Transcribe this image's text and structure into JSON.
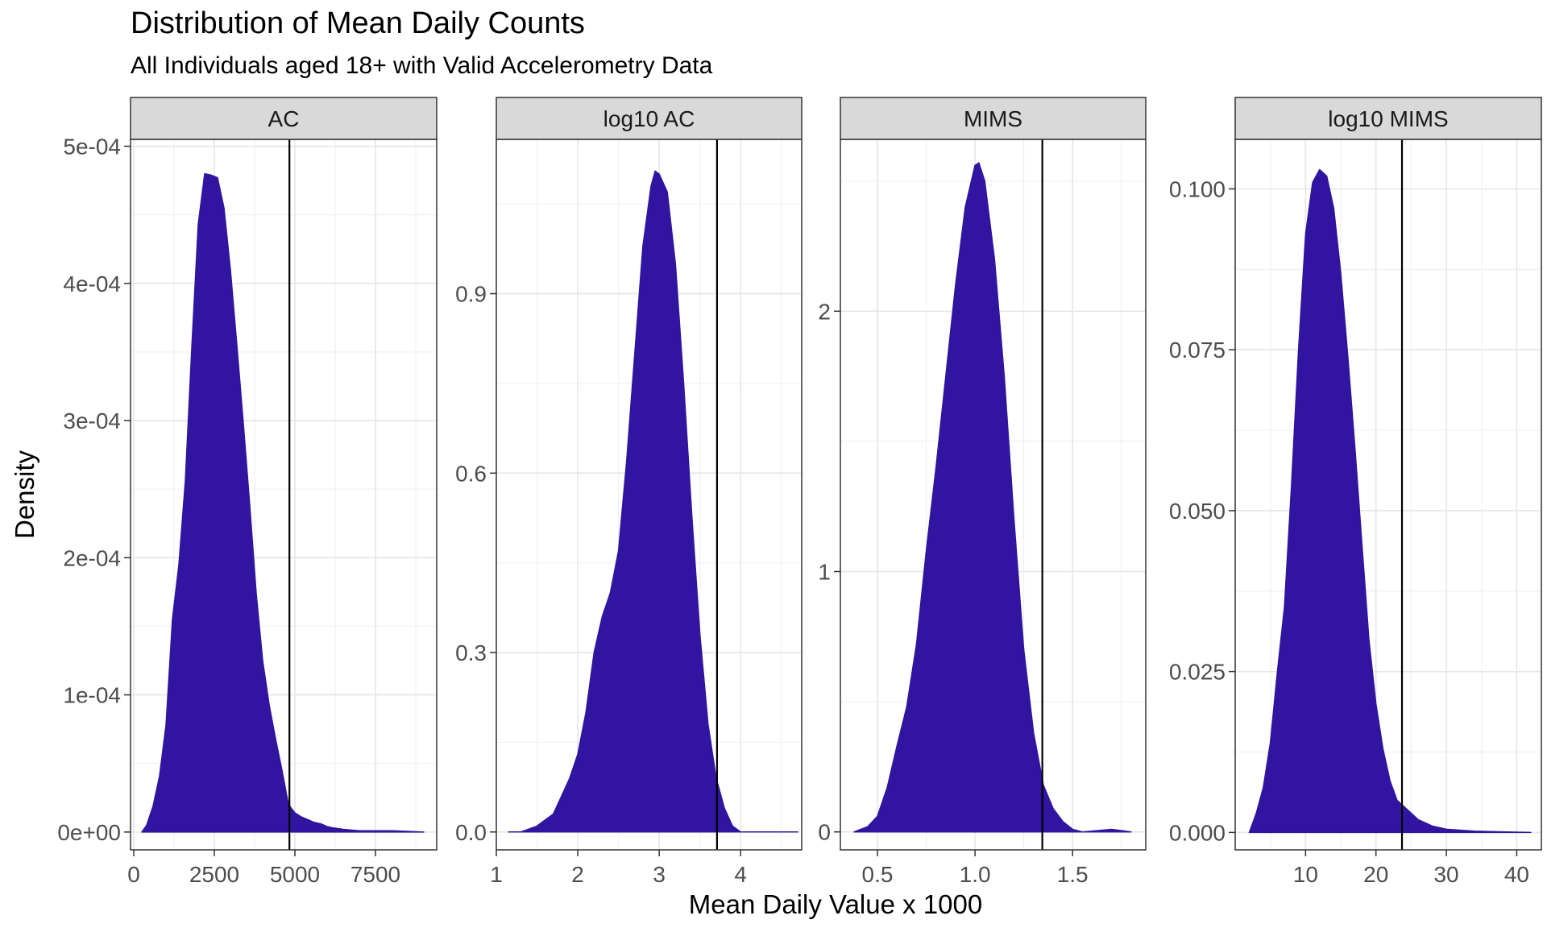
{
  "chart_data": {
    "type": "area",
    "title": "Distribution of Mean Daily  Counts",
    "subtitle": "All Individuals aged 18+ with Valid Accelerometry Data",
    "xlabel": "Mean Daily Value x 1000",
    "ylabel": "Density",
    "fill_color": "#3115A0",
    "grid": true,
    "panels": [
      {
        "label": "AC",
        "xlim": [
          -100,
          9400
        ],
        "ylim": [
          -1.3e-05,
          0.000505
        ],
        "xticks": [
          0,
          2500,
          5000,
          7500
        ],
        "xtick_labels": [
          "0",
          "2500",
          "5000",
          "7500"
        ],
        "yticks": [
          0,
          0.0001,
          0.0002,
          0.0003,
          0.0004,
          0.0005
        ],
        "ytick_labels": [
          "0e+00",
          "1e-04",
          "2e-04",
          "3e-04",
          "4e-04",
          "5e-04"
        ],
        "vline": 4830,
        "density": [
          [
            250,
            0.0
          ],
          [
            400,
            5e-06
          ],
          [
            600,
            1.9e-05
          ],
          [
            800,
            4.1e-05
          ],
          [
            1000,
            7.8e-05
          ],
          [
            1200,
            0.000155
          ],
          [
            1400,
            0.000195
          ],
          [
            1600,
            0.000256
          ],
          [
            1800,
            0.000353
          ],
          [
            2000,
            0.000443
          ],
          [
            2200,
            0.00048
          ],
          [
            2400,
            0.000479
          ],
          [
            2600,
            0.000477
          ],
          [
            2800,
            0.000455
          ],
          [
            3000,
            0.00041
          ],
          [
            3200,
            0.000355
          ],
          [
            3400,
            0.000298
          ],
          [
            3600,
            0.000238
          ],
          [
            3800,
            0.000174
          ],
          [
            4000,
            0.000125
          ],
          [
            4200,
            9.3e-05
          ],
          [
            4400,
            6.8e-05
          ],
          [
            4600,
            4.5e-05
          ],
          [
            4800,
            2e-05
          ],
          [
            5000,
            1.4e-05
          ],
          [
            5200,
            1.1e-05
          ],
          [
            5400,
            9e-06
          ],
          [
            5600,
            7e-06
          ],
          [
            5800,
            6e-06
          ],
          [
            6000,
            4e-06
          ],
          [
            6200,
            3e-06
          ],
          [
            6500,
            2e-06
          ],
          [
            7000,
            1e-06
          ],
          [
            8000,
            1e-06
          ],
          [
            9000,
            0.0
          ]
        ]
      },
      {
        "label": "log10 AC",
        "xlim": [
          1.0,
          4.75
        ],
        "ylim": [
          -0.0299,
          1.158
        ],
        "xticks": [
          1,
          2,
          3,
          4
        ],
        "xtick_labels": [
          "1",
          "2",
          "3",
          "4"
        ],
        "yticks": [
          0,
          0.3,
          0.6,
          0.9
        ],
        "ytick_labels": [
          "0.0",
          "0.3",
          "0.6",
          "0.9"
        ],
        "vline": 3.71,
        "density": [
          [
            1.15,
            0.0
          ],
          [
            1.3,
            0.0
          ],
          [
            1.5,
            0.01
          ],
          [
            1.6,
            0.02
          ],
          [
            1.7,
            0.03
          ],
          [
            1.8,
            0.06
          ],
          [
            1.9,
            0.09
          ],
          [
            2.0,
            0.13
          ],
          [
            2.1,
            0.2
          ],
          [
            2.2,
            0.3
          ],
          [
            2.3,
            0.36
          ],
          [
            2.4,
            0.4
          ],
          [
            2.5,
            0.47
          ],
          [
            2.6,
            0.62
          ],
          [
            2.7,
            0.8
          ],
          [
            2.8,
            0.98
          ],
          [
            2.9,
            1.08
          ],
          [
            2.95,
            1.105
          ],
          [
            3.0,
            1.1
          ],
          [
            3.1,
            1.07
          ],
          [
            3.2,
            0.95
          ],
          [
            3.3,
            0.75
          ],
          [
            3.4,
            0.53
          ],
          [
            3.5,
            0.33
          ],
          [
            3.6,
            0.18
          ],
          [
            3.7,
            0.09
          ],
          [
            3.8,
            0.04
          ],
          [
            3.9,
            0.01
          ],
          [
            4.0,
            0.0
          ],
          [
            4.3,
            0.0
          ],
          [
            4.6,
            0.0
          ],
          [
            4.7,
            0.0
          ]
        ]
      },
      {
        "label": "MIMS",
        "xlim": [
          0.31,
          1.875
        ],
        "ylim": [
          -0.069,
          2.66
        ],
        "xticks": [
          0.5,
          1.0,
          1.5
        ],
        "xtick_labels": [
          "0.5",
          "1.0",
          "1.5"
        ],
        "yticks": [
          0,
          1,
          2
        ],
        "ytick_labels": [
          "0",
          "1",
          "2"
        ],
        "vline": 1.345,
        "density": [
          [
            0.38,
            0.0
          ],
          [
            0.45,
            0.02
          ],
          [
            0.5,
            0.06
          ],
          [
            0.55,
            0.17
          ],
          [
            0.6,
            0.33
          ],
          [
            0.65,
            0.48
          ],
          [
            0.7,
            0.72
          ],
          [
            0.75,
            1.08
          ],
          [
            0.8,
            1.4
          ],
          [
            0.85,
            1.75
          ],
          [
            0.9,
            2.1
          ],
          [
            0.95,
            2.4
          ],
          [
            1.0,
            2.56
          ],
          [
            1.02,
            2.57
          ],
          [
            1.05,
            2.5
          ],
          [
            1.1,
            2.2
          ],
          [
            1.15,
            1.75
          ],
          [
            1.2,
            1.2
          ],
          [
            1.25,
            0.7
          ],
          [
            1.3,
            0.38
          ],
          [
            1.35,
            0.18
          ],
          [
            1.4,
            0.09
          ],
          [
            1.45,
            0.04
          ],
          [
            1.5,
            0.01
          ],
          [
            1.55,
            0.0
          ],
          [
            1.7,
            0.01
          ],
          [
            1.8,
            0.0
          ]
        ]
      },
      {
        "label": "log10 MIMS",
        "xlim": [
          0.0,
          43.5
        ],
        "ylim": [
          -0.00271,
          0.1077
        ],
        "xticks": [
          10,
          20,
          30,
          40
        ],
        "xtick_labels": [
          "10",
          "20",
          "30",
          "40"
        ],
        "yticks": [
          0,
          0.025,
          0.05,
          0.075,
          0.1
        ],
        "ytick_labels": [
          "0.000",
          "0.025",
          "0.050",
          "0.075",
          "0.100"
        ],
        "vline": 23.7,
        "density": [
          [
            2.0,
            0.0
          ],
          [
            3.0,
            0.003
          ],
          [
            4.0,
            0.007
          ],
          [
            5.0,
            0.014
          ],
          [
            6.0,
            0.025
          ],
          [
            7.0,
            0.035
          ],
          [
            8.0,
            0.054
          ],
          [
            9.0,
            0.075
          ],
          [
            10.0,
            0.093
          ],
          [
            11.0,
            0.101
          ],
          [
            12.0,
            0.103
          ],
          [
            13.0,
            0.102
          ],
          [
            14.0,
            0.097
          ],
          [
            15.0,
            0.087
          ],
          [
            16.0,
            0.074
          ],
          [
            17.0,
            0.06
          ],
          [
            18.0,
            0.045
          ],
          [
            19.0,
            0.03
          ],
          [
            20.0,
            0.02
          ],
          [
            21.0,
            0.013
          ],
          [
            22.0,
            0.008
          ],
          [
            23.0,
            0.005
          ],
          [
            24.0,
            0.004
          ],
          [
            25.0,
            0.003
          ],
          [
            26.0,
            0.002
          ],
          [
            27.0,
            0.0015
          ],
          [
            28.0,
            0.001
          ],
          [
            30.0,
            0.0005
          ],
          [
            34.0,
            0.0002
          ],
          [
            38.0,
            0.0001
          ],
          [
            42.0,
            0.0
          ]
        ]
      }
    ]
  }
}
